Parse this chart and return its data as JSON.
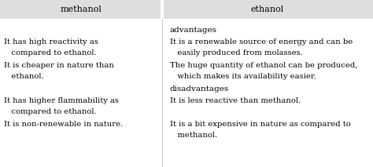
{
  "header_bg": "#dedede",
  "bg_color": "#ffffff",
  "col1_header": "methanol",
  "col2_header": "ethanol",
  "advantages_label": "advantages",
  "disadvantages_label": "disadvantages",
  "col1_adv_lines": [
    [
      "It has high reactivity as",
      "   compared to ethanol."
    ],
    [
      "It is cheaper in nature than",
      "   ethanol."
    ]
  ],
  "col2_adv_lines": [
    [
      "It is a renewable source of energy and can be",
      "   easily produced from molasses."
    ],
    [
      "The huge quantity of ethanol can be produced,",
      "   which makes its availability easier."
    ]
  ],
  "col1_disadv_lines": [
    [
      "It has higher flammability as",
      "   compared to ethanol."
    ],
    [
      "It is non-renewable in nature."
    ]
  ],
  "col2_disadv_lines": [
    [
      "It is less reactive than methanol."
    ],
    [
      "It is a bit expensive in nature as compared to",
      "   methanol."
    ]
  ],
  "font_size": 7.2,
  "header_font_size": 8.0,
  "section_font_size": 7.5,
  "col_split": 0.435,
  "fig_width": 4.74,
  "fig_height": 2.13,
  "dpi": 100
}
